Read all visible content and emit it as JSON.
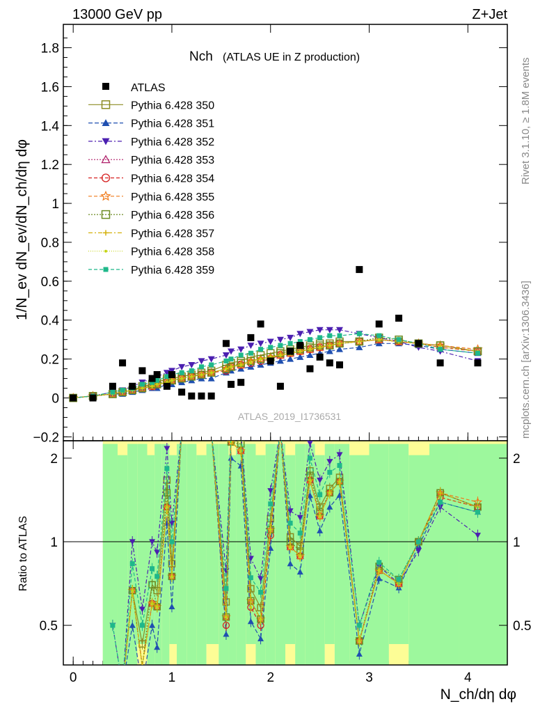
{
  "header": {
    "left": "13000 GeV pp",
    "right": "Z+Jet",
    "side_top": "Rivet 3.1.10, ≥ 1.8M events",
    "side_bottom": "mcplots.cern.ch [arXiv:1306.3436]",
    "watermark": "ATLAS_2019_I1736531"
  },
  "chart_data": {
    "type": "scatter",
    "title_main": "Nch",
    "title_sub": "(ATLAS UE in Z production)",
    "ylabel": "1/N_ev dN_ev/dN_ch/dη dφ",
    "xlabel": "N_ch/dη dφ",
    "ratio_ylabel": "Ratio to ATLAS",
    "xlim": [
      -0.1,
      4.4
    ],
    "ylim": [
      -0.22,
      1.92
    ],
    "ratio_ylim": [
      0.36,
      2.31
    ],
    "x_ticks": [
      "0",
      "1",
      "2",
      "3",
      "4"
    ],
    "y_ticks": [
      "−0.2",
      "0",
      "0.2",
      "0.4",
      "0.6",
      "0.8",
      "1",
      "1.2",
      "1.4",
      "1.6",
      "1.8"
    ],
    "ratio_ticks": [
      "0.5",
      "1",
      "2"
    ],
    "x": [
      0.0,
      0.2,
      0.4,
      0.5,
      0.6,
      0.7,
      0.8,
      0.85,
      0.95,
      1.0,
      1.1,
      1.2,
      1.3,
      1.4,
      1.55,
      1.6,
      1.7,
      1.8,
      1.9,
      2.0,
      2.1,
      2.2,
      2.3,
      2.4,
      2.5,
      2.6,
      2.7,
      2.9,
      3.1,
      3.3,
      3.5,
      3.72,
      4.1
    ],
    "atlas": [
      0.0,
      0.0,
      0.06,
      0.18,
      0.06,
      0.14,
      0.1,
      0.12,
      0.06,
      0.12,
      0.03,
      0.01,
      0.01,
      0.01,
      0.28,
      0.07,
      0.08,
      0.31,
      0.38,
      0.19,
      0.06,
      0.24,
      0.27,
      0.15,
      0.21,
      0.18,
      0.17,
      0.66,
      0.38,
      0.41,
      0.28,
      0.18,
      0.18
    ],
    "ratio_band_yellow": [
      [
        0.5,
        2.2
      ],
      [
        2.5,
        2.2
      ],
      [
        3.7,
        2.15
      ]
    ],
    "series": [
      {
        "name": "Pythia 6.428 350",
        "color": "#8b8b22",
        "marker": "square-open",
        "dash": "solid",
        "values": [
          0.0,
          0.01,
          0.02,
          0.03,
          0.04,
          0.06,
          0.07,
          0.08,
          0.1,
          0.1,
          0.11,
          0.12,
          0.13,
          0.14,
          0.17,
          0.18,
          0.19,
          0.21,
          0.22,
          0.23,
          0.24,
          0.25,
          0.26,
          0.27,
          0.28,
          0.28,
          0.29,
          0.29,
          0.3,
          0.29,
          0.28,
          0.27,
          0.24
        ]
      },
      {
        "name": "Pythia 6.428 351",
        "color": "#1f4fb0",
        "marker": "triangle-up",
        "dash": "6,3",
        "values": [
          0.0,
          0.01,
          0.02,
          0.02,
          0.03,
          0.04,
          0.05,
          0.05,
          0.07,
          0.07,
          0.08,
          0.09,
          0.1,
          0.1,
          0.13,
          0.14,
          0.15,
          0.16,
          0.17,
          0.18,
          0.19,
          0.2,
          0.21,
          0.22,
          0.23,
          0.24,
          0.25,
          0.26,
          0.28,
          0.28,
          0.27,
          0.25,
          0.23
        ]
      },
      {
        "name": "Pythia 6.428 352",
        "color": "#4b1fb0",
        "marker": "triangle-down",
        "dash": "6,3,2,3",
        "values": [
          0.0,
          0.01,
          0.03,
          0.04,
          0.06,
          0.08,
          0.1,
          0.11,
          0.13,
          0.14,
          0.16,
          0.17,
          0.19,
          0.2,
          0.22,
          0.24,
          0.25,
          0.27,
          0.28,
          0.29,
          0.3,
          0.31,
          0.33,
          0.34,
          0.35,
          0.35,
          0.35,
          0.33,
          0.31,
          0.29,
          0.26,
          0.24,
          0.19
        ]
      },
      {
        "name": "Pythia 6.428 353",
        "color": "#b01f6a",
        "marker": "triangle-up-open",
        "dash": "2,2",
        "values": [
          0.0,
          0.01,
          0.02,
          0.03,
          0.04,
          0.05,
          0.06,
          0.07,
          0.08,
          0.09,
          0.1,
          0.11,
          0.12,
          0.13,
          0.15,
          0.16,
          0.17,
          0.19,
          0.2,
          0.21,
          0.22,
          0.23,
          0.24,
          0.25,
          0.26,
          0.27,
          0.28,
          0.29,
          0.3,
          0.29,
          0.28,
          0.27,
          0.24
        ]
      },
      {
        "name": "Pythia 6.428 354",
        "color": "#d62020",
        "marker": "circle-open",
        "dash": "5,3",
        "values": [
          0.0,
          0.01,
          0.02,
          0.03,
          0.04,
          0.05,
          0.06,
          0.07,
          0.08,
          0.09,
          0.1,
          0.11,
          0.12,
          0.13,
          0.14,
          0.16,
          0.17,
          0.18,
          0.19,
          0.2,
          0.22,
          0.23,
          0.24,
          0.25,
          0.26,
          0.27,
          0.28,
          0.29,
          0.3,
          0.29,
          0.28,
          0.26,
          0.24
        ]
      },
      {
        "name": "Pythia 6.428 355",
        "color": "#f07a1a",
        "marker": "star-open",
        "dash": "5,3",
        "values": [
          0.0,
          0.01,
          0.02,
          0.03,
          0.04,
          0.05,
          0.06,
          0.07,
          0.08,
          0.09,
          0.1,
          0.11,
          0.12,
          0.13,
          0.15,
          0.16,
          0.17,
          0.19,
          0.2,
          0.21,
          0.22,
          0.23,
          0.24,
          0.25,
          0.26,
          0.27,
          0.28,
          0.29,
          0.3,
          0.29,
          0.28,
          0.27,
          0.25
        ]
      },
      {
        "name": "Pythia 6.428 356",
        "color": "#6b8b22",
        "marker": "square-open",
        "dash": "2,2",
        "values": [
          0.0,
          0.01,
          0.02,
          0.03,
          0.04,
          0.05,
          0.07,
          0.07,
          0.09,
          0.09,
          0.1,
          0.11,
          0.12,
          0.13,
          0.15,
          0.16,
          0.18,
          0.19,
          0.2,
          0.21,
          0.23,
          0.24,
          0.25,
          0.26,
          0.27,
          0.27,
          0.28,
          0.29,
          0.31,
          0.3,
          0.28,
          0.27,
          0.24
        ]
      },
      {
        "name": "Pythia 6.428 357",
        "color": "#d4b00a",
        "marker": "cross-small",
        "dash": "6,3,2,3",
        "values": [
          0.0,
          0.01,
          0.02,
          0.03,
          0.04,
          0.05,
          0.06,
          0.07,
          0.08,
          0.09,
          0.1,
          0.11,
          0.12,
          0.13,
          0.15,
          0.16,
          0.17,
          0.19,
          0.2,
          0.21,
          0.22,
          0.23,
          0.24,
          0.25,
          0.26,
          0.27,
          0.28,
          0.29,
          0.3,
          0.29,
          0.28,
          0.27,
          0.24
        ]
      },
      {
        "name": "Pythia 6.428 358",
        "color": "#c4d414",
        "marker": "dot",
        "dash": "1,2",
        "values": [
          0.0,
          0.01,
          0.02,
          0.03,
          0.04,
          0.05,
          0.06,
          0.07,
          0.08,
          0.09,
          0.1,
          0.11,
          0.12,
          0.13,
          0.15,
          0.16,
          0.17,
          0.18,
          0.2,
          0.21,
          0.22,
          0.23,
          0.24,
          0.25,
          0.26,
          0.27,
          0.28,
          0.29,
          0.3,
          0.29,
          0.28,
          0.26,
          0.24
        ]
      },
      {
        "name": "Pythia 6.428 359",
        "color": "#1fb88a",
        "marker": "square-filled",
        "dash": "5,3",
        "values": [
          0.0,
          0.01,
          0.03,
          0.04,
          0.05,
          0.07,
          0.08,
          0.09,
          0.11,
          0.12,
          0.13,
          0.14,
          0.16,
          0.17,
          0.19,
          0.2,
          0.22,
          0.23,
          0.25,
          0.26,
          0.27,
          0.28,
          0.29,
          0.3,
          0.31,
          0.32,
          0.32,
          0.33,
          0.32,
          0.3,
          0.28,
          0.25,
          0.23
        ]
      }
    ],
    "legend": {
      "data_label": "ATLAS",
      "position": "top-left"
    }
  }
}
